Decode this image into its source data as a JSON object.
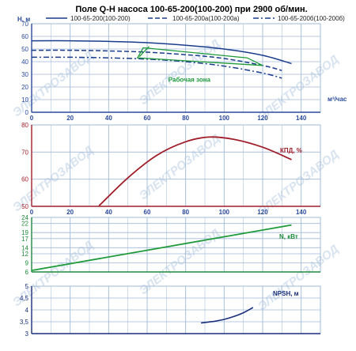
{
  "colors": {
    "qh_color": "#1a3c8c",
    "kpd_color": "#a01e2a",
    "n_color": "#1e9a3a",
    "npsh_color": "#1a2f7a",
    "zone_color": "#1e9a3a",
    "axis_q": "#2a4a9a",
    "axis_kpd": "#a01e2a",
    "axis_n": "#1e8a3a",
    "axis_npsh": "#1a2f7a",
    "grid": "#9fb8d8",
    "watermark": "#c7d7ea"
  },
  "header": {
    "title": "Поле Q-H насоса 100-65-200(100-200) при 2900 об/мин."
  },
  "watermark": {
    "text": "ЭЛЕКТРОЗАВОД"
  },
  "chart_data": [
    {
      "type": "line",
      "ylabel": "H, м",
      "xlabel": "м³/час",
      "xlim": [
        0,
        150
      ],
      "ylim": [
        0,
        70
      ],
      "x_ticks": [
        "0",
        "20",
        "40",
        "60",
        "80",
        "100",
        "120",
        "140"
      ],
      "y_ticks": [
        "0",
        "10",
        "20",
        "30",
        "40",
        "50",
        "60",
        "70"
      ],
      "grid": true,
      "legend_position": "top",
      "series": [
        {
          "name": "100-65-200(100-200)",
          "style": "solid",
          "x": [
            0,
            20,
            40,
            60,
            80,
            100,
            120,
            135
          ],
          "y": [
            56.5,
            56.5,
            56,
            55,
            53,
            50,
            45,
            38.5
          ]
        },
        {
          "name": "100-65-200а(100-200а)",
          "style": "dashed",
          "x": [
            0,
            20,
            40,
            60,
            80,
            100,
            120,
            130
          ],
          "y": [
            49,
            49,
            48.5,
            47.5,
            45.5,
            42.5,
            37,
            33
          ]
        },
        {
          "name": "100-65-200б(100-200б)",
          "style": "dashdot",
          "x": [
            0,
            20,
            40,
            60,
            80,
            100,
            120,
            130
          ],
          "y": [
            43.5,
            43.5,
            43,
            42,
            40,
            36.5,
            31,
            27
          ]
        }
      ],
      "annotations": [
        {
          "text": "Рабочая зона",
          "polygon_x": [
            58,
            112,
            120,
            55
          ],
          "polygon_y": [
            51,
            43,
            37,
            43
          ]
        }
      ]
    },
    {
      "type": "line",
      "xlim": [
        0,
        150
      ],
      "ylim": [
        50,
        80
      ],
      "x_ticks": [
        "0",
        "20",
        "40",
        "60",
        "80",
        "100",
        "120",
        "140"
      ],
      "y_ticks": [
        "50",
        "60",
        "70",
        "80"
      ],
      "grid": true,
      "series": [
        {
          "name": "КПД, %",
          "x": [
            35,
            50,
            65,
            80,
            92,
            105,
            120,
            135
          ],
          "y": [
            50.2,
            60.5,
            68.8,
            73.8,
            75.5,
            74.7,
            71.8,
            67.2
          ]
        }
      ]
    },
    {
      "type": "line",
      "xlim": [
        0,
        150
      ],
      "ylim": [
        6,
        24
      ],
      "y_ticks": [
        "6",
        "9",
        "12",
        "14",
        "17",
        "19",
        "22",
        "24"
      ],
      "grid": true,
      "series": [
        {
          "name": "N, кВт",
          "x": [
            0,
            135
          ],
          "y": [
            6.5,
            21.5
          ]
        }
      ]
    },
    {
      "type": "line",
      "xlim": [
        0,
        150
      ],
      "ylim": [
        3,
        5
      ],
      "y_ticks": [
        "3",
        "3,5",
        "4",
        "4,5",
        "5"
      ],
      "grid": true,
      "series": [
        {
          "name": "NPSH, м",
          "x": [
            88,
            95,
            100,
            105,
            110,
            115
          ],
          "y": [
            3.45,
            3.52,
            3.6,
            3.72,
            3.88,
            4.1
          ]
        }
      ]
    }
  ]
}
